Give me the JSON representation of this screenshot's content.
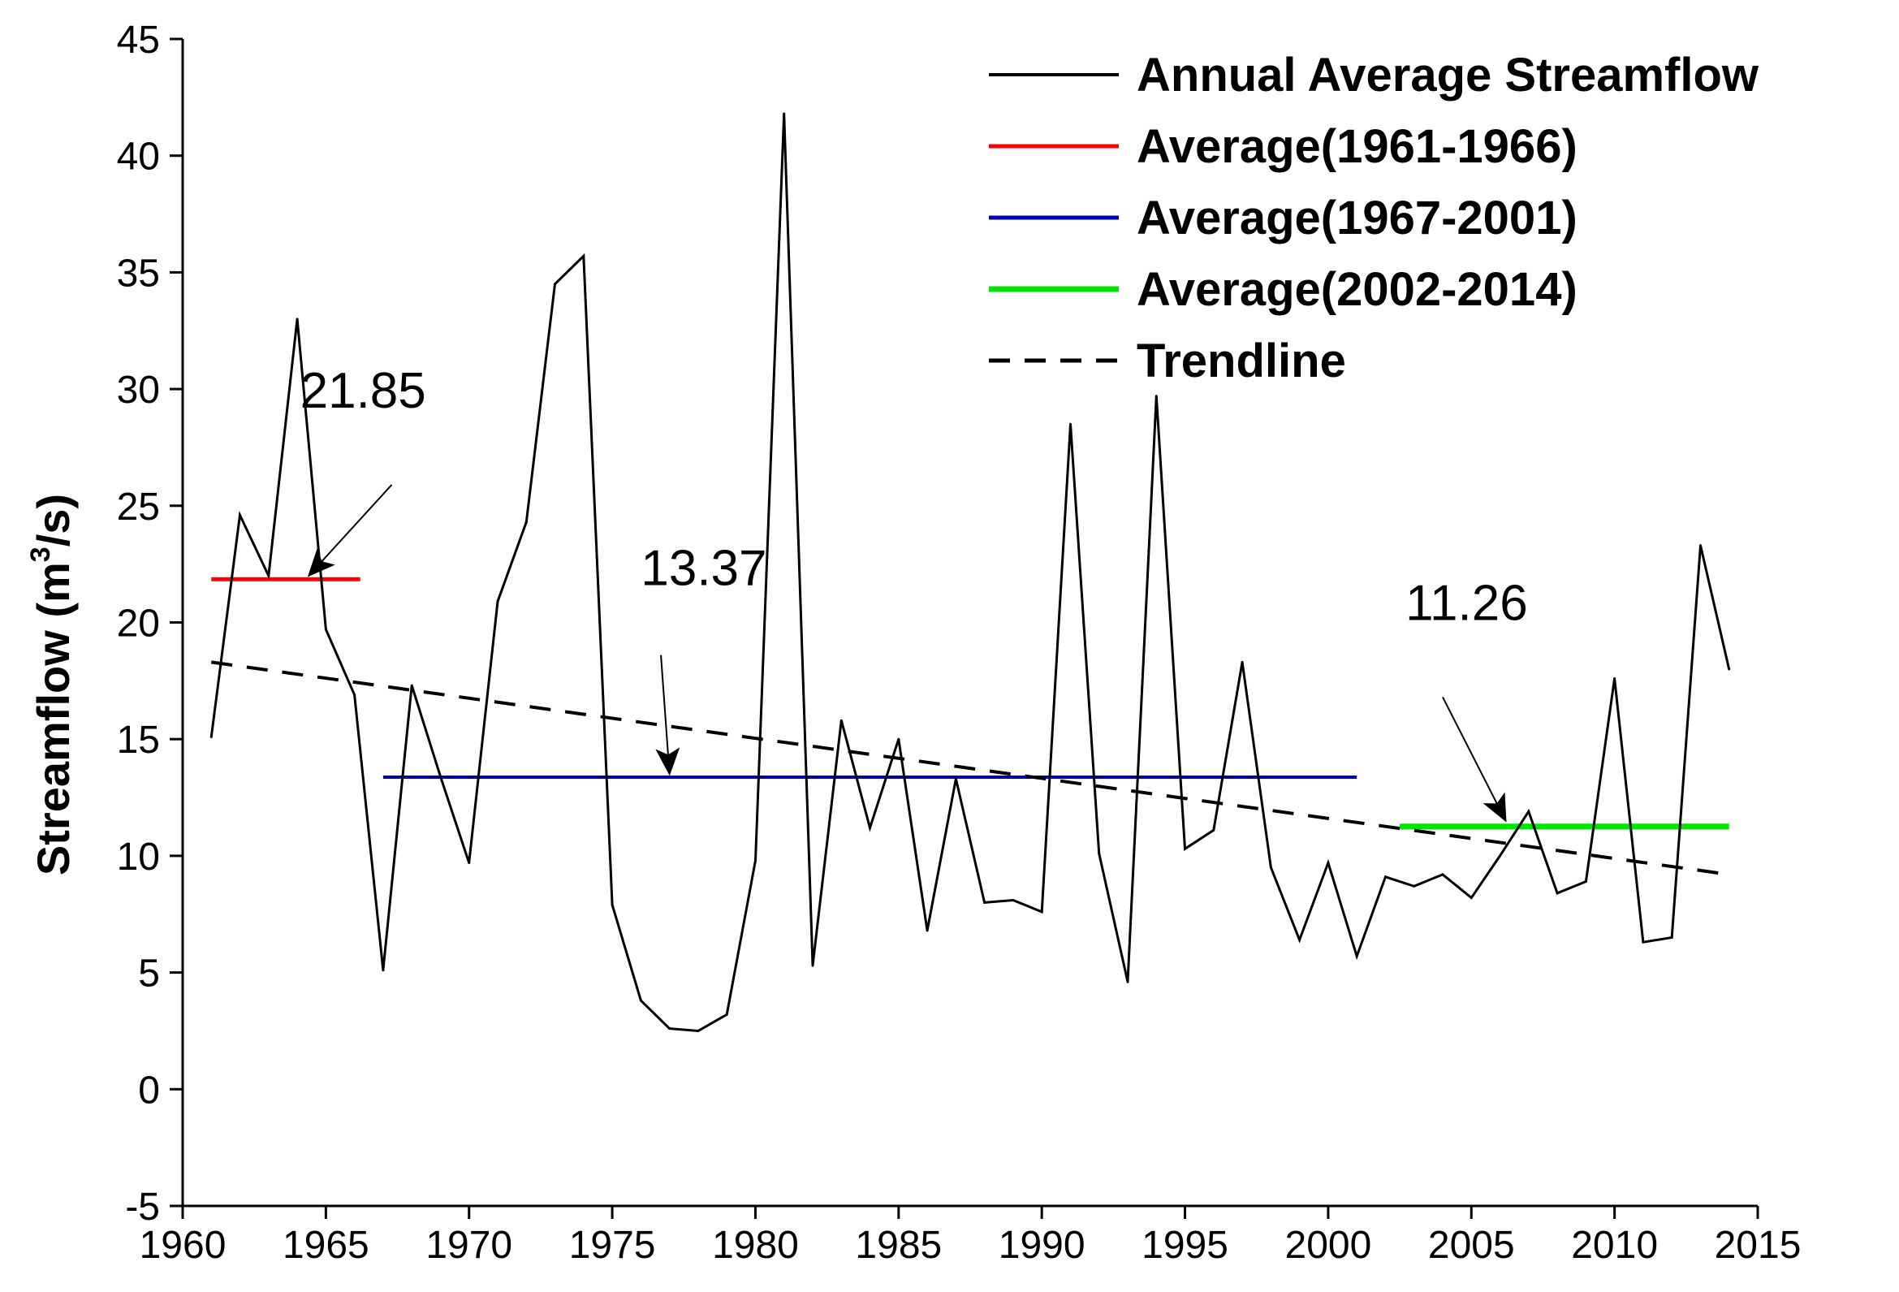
{
  "chart_data": {
    "type": "line",
    "title": "",
    "xlabel": "",
    "ylabel": "Streamflow (m",
    "ylabel_sup": "3",
    "ylabel_tail": "/s)",
    "xlim": [
      1960,
      2015
    ],
    "ylim": [
      -5,
      45
    ],
    "xticks": [
      1960,
      1965,
      1970,
      1975,
      1980,
      1985,
      1990,
      1995,
      2000,
      2005,
      2010,
      2015
    ],
    "yticks": [
      -5,
      0,
      5,
      10,
      15,
      20,
      25,
      30,
      35,
      40,
      45
    ],
    "grid": false,
    "legend_position": "top-right",
    "series": [
      {
        "name": "Annual Average Streamflow",
        "style": "solid",
        "color": "#000000",
        "x": [
          1961,
          1962,
          1963,
          1964,
          1965,
          1966,
          1967,
          1968,
          1969,
          1970,
          1971,
          1972,
          1973,
          1974,
          1975,
          1976,
          1977,
          1978,
          1979,
          1980,
          1981,
          1982,
          1983,
          1984,
          1985,
          1986,
          1987,
          1988,
          1989,
          1990,
          1991,
          1992,
          1993,
          1994,
          1995,
          1996,
          1997,
          1998,
          1999,
          2000,
          2001,
          2002,
          2003,
          2004,
          2005,
          2006,
          2007,
          2008,
          2009,
          2010,
          2011,
          2012,
          2013,
          2014
        ],
        "values": [
          15.1,
          24.6,
          22.0,
          33.0,
          19.7,
          16.9,
          5.1,
          17.3,
          13.4,
          9.7,
          20.9,
          24.3,
          34.5,
          35.7,
          7.9,
          3.8,
          2.6,
          2.5,
          3.2,
          9.8,
          41.8,
          5.3,
          15.8,
          11.2,
          15.0,
          6.8,
          13.3,
          8.0,
          8.1,
          7.6,
          28.5,
          10.1,
          4.6,
          29.7,
          10.3,
          11.1,
          18.3,
          9.5,
          6.4,
          9.7,
          5.7,
          9.1,
          8.7,
          9.2,
          8.2,
          10.0,
          11.9,
          8.4,
          8.9,
          17.6,
          6.3,
          6.5,
          23.3,
          18.0
        ]
      },
      {
        "name": "Average(1961-1966)",
        "style": "solid",
        "color": "#ff0000",
        "x": [
          1961,
          1966.2
        ],
        "values": [
          21.85,
          21.85
        ]
      },
      {
        "name": "Average(1967-2001)",
        "style": "solid",
        "color": "#0000b4",
        "x": [
          1967,
          2001
        ],
        "values": [
          13.37,
          13.37
        ]
      },
      {
        "name": "Average(2002-2014)",
        "style": "solid",
        "color": "#00e600",
        "x": [
          2002.5,
          2014
        ],
        "values": [
          11.26,
          11.26
        ]
      },
      {
        "name": "Trendline",
        "style": "dashed",
        "color": "#000000",
        "x": [
          1961,
          2014
        ],
        "values": [
          18.3,
          9.2
        ]
      }
    ],
    "annotations": [
      {
        "text": "21.85",
        "x": 1964.1,
        "y": 29.2,
        "arrow_from": [
          1967.3,
          25.9
        ],
        "arrow_to": [
          1964.4,
          22.0
        ]
      },
      {
        "text": "13.37",
        "x": 1976.0,
        "y": 21.6,
        "arrow_from": [
          1976.7,
          18.6
        ],
        "arrow_to": [
          1977.0,
          13.5
        ]
      },
      {
        "text": "11.26",
        "x": 2002.7,
        "y": 20.1,
        "arrow_from": [
          2004.0,
          16.8
        ],
        "arrow_to": [
          2006.2,
          11.5
        ]
      }
    ]
  }
}
